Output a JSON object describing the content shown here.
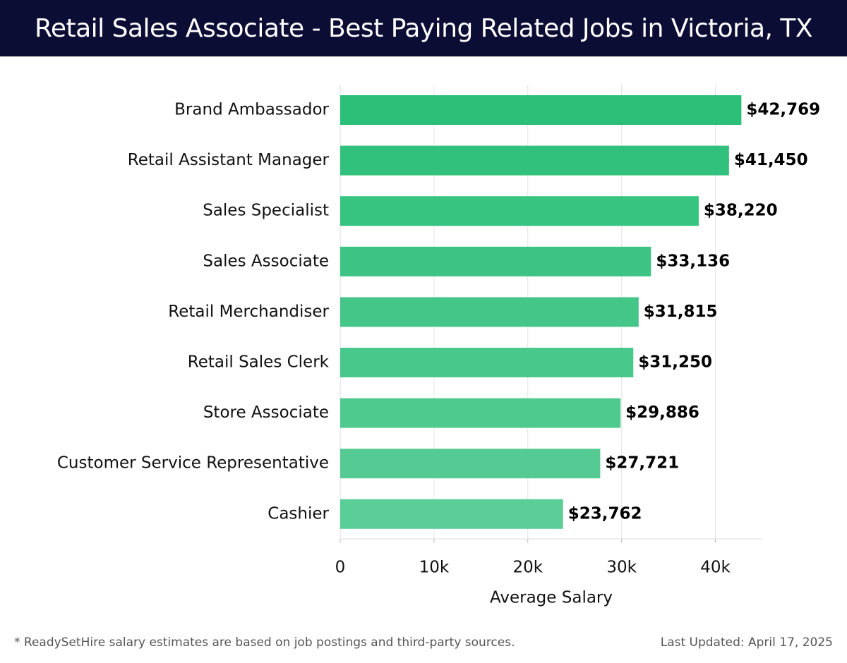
{
  "header": {
    "title": "Retail Sales Associate - Best Paying Related Jobs in Victoria, TX"
  },
  "footer": {
    "note": "* ReadySetHire salary estimates are based on job postings and third-party sources.",
    "updated": "Last Updated: April 17, 2025"
  },
  "colors": {
    "header_bg": "#0b0d35",
    "bar_top": "#2bbf78",
    "bar_bottom": "#5bcd97"
  },
  "chart_data": {
    "type": "bar",
    "orientation": "horizontal",
    "categories": [
      "Brand Ambassador",
      "Retail Assistant Manager",
      "Sales Specialist",
      "Sales Associate",
      "Retail Merchandiser",
      "Retail Sales Clerk",
      "Store Associate",
      "Customer Service Representative",
      "Cashier"
    ],
    "values": [
      42769,
      41450,
      38220,
      33136,
      31815,
      31250,
      29886,
      27721,
      23762
    ],
    "value_labels": [
      "$42,769",
      "$41,450",
      "$38,220",
      "$33,136",
      "$31,815",
      "$31,250",
      "$29,886",
      "$27,721",
      "$23,762"
    ],
    "xlabel": "Average Salary",
    "xlim": [
      0,
      45000
    ],
    "xticks": [
      0,
      10000,
      20000,
      30000,
      40000
    ],
    "xtick_labels": [
      "0",
      "10k",
      "20k",
      "30k",
      "40k"
    ],
    "grid": "vertical"
  }
}
